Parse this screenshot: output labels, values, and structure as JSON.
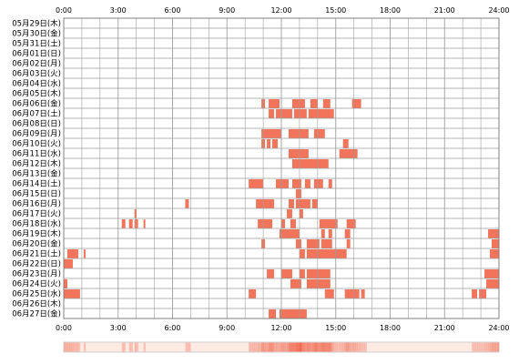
{
  "chart_data": {
    "type": "heatmap",
    "x_ticks": [
      "0:00",
      "3:00",
      "6:00",
      "9:00",
      "12:00",
      "15:00",
      "18:00",
      "21:00",
      "24:00"
    ],
    "x_range_hours": [
      0,
      24
    ],
    "rows": [
      {
        "label": "05月29日(木)",
        "intervals": []
      },
      {
        "label": "05月30日(金)",
        "intervals": []
      },
      {
        "label": "05月31日(土)",
        "intervals": []
      },
      {
        "label": "06月01日(日)",
        "intervals": []
      },
      {
        "label": "06月02日(月)",
        "intervals": []
      },
      {
        "label": "06月03日(火)",
        "intervals": []
      },
      {
        "label": "06月04日(水)",
        "intervals": []
      },
      {
        "label": "06月05日(木)",
        "intervals": []
      },
      {
        "label": "06月06日(金)",
        "intervals": [
          [
            10.9,
            11.1
          ],
          [
            11.3,
            11.9
          ],
          [
            12.6,
            13.3
          ],
          [
            13.6,
            14.0
          ],
          [
            14.3,
            14.7
          ],
          [
            15.9,
            16.4
          ]
        ]
      },
      {
        "label": "06月07日(土)",
        "intervals": [
          [
            11.3,
            11.6
          ],
          [
            11.7,
            12.6
          ],
          [
            12.7,
            13.4
          ],
          [
            13.5,
            14.9
          ]
        ]
      },
      {
        "label": "06月08日(日)",
        "intervals": []
      },
      {
        "label": "06月09日(月)",
        "intervals": [
          [
            10.9,
            12.0
          ],
          [
            12.4,
            13.5
          ],
          [
            13.8,
            14.4
          ]
        ]
      },
      {
        "label": "06月10日(火)",
        "intervals": [
          [
            10.9,
            11.1
          ],
          [
            11.2,
            11.4
          ],
          [
            11.5,
            11.8
          ],
          [
            15.4,
            15.7
          ]
        ]
      },
      {
        "label": "06月11日(水)",
        "intervals": [
          [
            12.4,
            13.5
          ],
          [
            15.2,
            16.2
          ]
        ]
      },
      {
        "label": "06月12日(木)",
        "intervals": [
          [
            12.6,
            14.6
          ]
        ]
      },
      {
        "label": "06月13日(金)",
        "intervals": []
      },
      {
        "label": "06月14日(土)",
        "intervals": [
          [
            10.2,
            11.0
          ],
          [
            11.7,
            12.4
          ],
          [
            12.6,
            13.1
          ],
          [
            13.3,
            13.6
          ],
          [
            13.8,
            14.3
          ],
          [
            14.6,
            14.8
          ]
        ]
      },
      {
        "label": "06月15日(日)",
        "intervals": [
          [
            12.8,
            13.1
          ]
        ]
      },
      {
        "label": "06月16日(月)",
        "intervals": [
          [
            6.7,
            6.9
          ],
          [
            10.6,
            11.6
          ],
          [
            12.4,
            12.7
          ],
          [
            12.8,
            13.6
          ],
          [
            13.7,
            14.0
          ]
        ]
      },
      {
        "label": "06月17日(火)",
        "intervals": [
          [
            3.9,
            4.0
          ],
          [
            12.3,
            12.6
          ],
          [
            13.0,
            13.2
          ]
        ]
      },
      {
        "label": "06月18日(水)",
        "intervals": [
          [
            3.2,
            3.4
          ],
          [
            3.6,
            3.8
          ],
          [
            3.9,
            4.1
          ],
          [
            4.4,
            4.5
          ],
          [
            10.7,
            11.5
          ],
          [
            12.0,
            12.2
          ],
          [
            12.5,
            12.8
          ],
          [
            14.1,
            15.1
          ],
          [
            15.6,
            16.1
          ]
        ]
      },
      {
        "label": "06月19日(木)",
        "intervals": [
          [
            11.9,
            13.0
          ],
          [
            14.2,
            14.4
          ],
          [
            14.6,
            14.8
          ],
          [
            15.5,
            15.8
          ],
          [
            23.4,
            24.0
          ]
        ]
      },
      {
        "label": "06月20日(金)",
        "intervals": [
          [
            10.9,
            11.1
          ],
          [
            12.8,
            13.1
          ],
          [
            13.4,
            14.1
          ],
          [
            14.2,
            14.8
          ],
          [
            15.6,
            15.8
          ],
          [
            23.6,
            24.0
          ]
        ]
      },
      {
        "label": "06月21日(土)",
        "intervals": [
          [
            0.2,
            0.8
          ],
          [
            1.1,
            1.2
          ],
          [
            13.0,
            13.3
          ],
          [
            13.4,
            15.6
          ],
          [
            23.5,
            24.0
          ]
        ]
      },
      {
        "label": "06月22日(日)",
        "intervals": [
          [
            0.0,
            0.5
          ]
        ]
      },
      {
        "label": "06月23日(月)",
        "intervals": [
          [
            11.2,
            11.6
          ],
          [
            12.0,
            12.6
          ],
          [
            13.0,
            13.3
          ],
          [
            13.4,
            14.7
          ],
          [
            23.2,
            24.0
          ]
        ]
      },
      {
        "label": "06月24日(火)",
        "intervals": [
          [
            0.0,
            0.2
          ],
          [
            12.5,
            13.1
          ],
          [
            13.4,
            14.7
          ],
          [
            23.3,
            24.0
          ]
        ]
      },
      {
        "label": "06月25日(水)",
        "intervals": [
          [
            0.0,
            0.9
          ],
          [
            10.2,
            10.6
          ],
          [
            14.4,
            14.9
          ],
          [
            15.5,
            16.3
          ],
          [
            16.4,
            16.6
          ],
          [
            22.5,
            22.8
          ],
          [
            22.9,
            23.3
          ]
        ]
      },
      {
        "label": "06月26日(木)",
        "intervals": []
      },
      {
        "label": "06月27日(金)",
        "intervals": [
          [
            11.3,
            11.7
          ],
          [
            11.9,
            13.4
          ]
        ]
      }
    ],
    "colors": {
      "bar": "#f2745a",
      "bar_light": "#f6a089",
      "grid": "#9e9e9e",
      "summary_base": "#fdeae3",
      "summary_strong": "#f06a50"
    }
  }
}
